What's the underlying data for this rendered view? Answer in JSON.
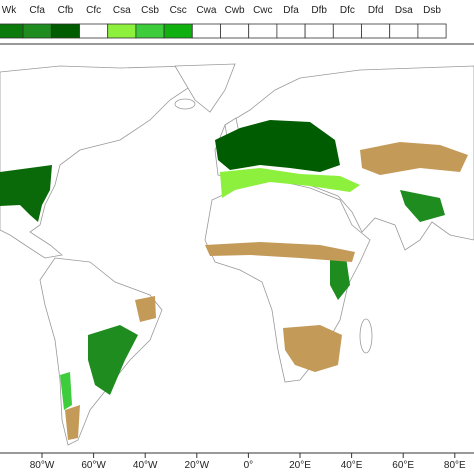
{
  "legend": {
    "items": [
      {
        "label": "Wk",
        "color": "#0a7a0a"
      },
      {
        "label": "Cfa",
        "color": "#1e8c1e"
      },
      {
        "label": "Cfb",
        "color": "#005c00"
      },
      {
        "label": "Cfc",
        "color": "#ffffff"
      },
      {
        "label": "Csa",
        "color": "#8cf03c"
      },
      {
        "label": "Csb",
        "color": "#3ccc3c"
      },
      {
        "label": "Csc",
        "color": "#10b010"
      },
      {
        "label": "Cwa",
        "color": "#ffffff"
      },
      {
        "label": "Cwb",
        "color": "#ffffff"
      },
      {
        "label": "Cwc",
        "color": "#ffffff"
      },
      {
        "label": "Dfa",
        "color": "#ffffff"
      },
      {
        "label": "Dfb",
        "color": "#ffffff"
      },
      {
        "label": "Dfc",
        "color": "#ffffff"
      },
      {
        "label": "Dfd",
        "color": "#ffffff"
      },
      {
        "label": "Dsa",
        "color": "#ffffff"
      },
      {
        "label": "Dsb",
        "color": "#ffffff"
      }
    ]
  },
  "axis": {
    "labels": [
      "80°W",
      "60°W",
      "40°W",
      "20°W",
      "0°",
      "20°E",
      "40°E",
      "60°E",
      "80°E"
    ]
  }
}
